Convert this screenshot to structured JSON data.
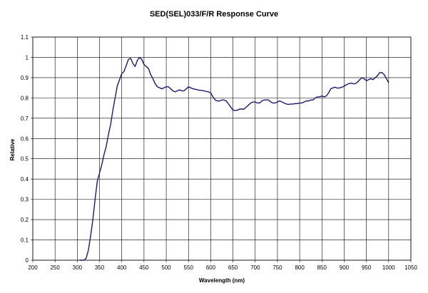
{
  "chart_data": {
    "type": "line",
    "title": "SED(SEL)033/F/R Response Curve",
    "xlabel": "Wavelength (nm)",
    "ylabel": "Relative",
    "xlim": [
      200,
      1050
    ],
    "ylim": [
      0,
      1.1
    ],
    "x_ticks": [
      "200",
      "250",
      "300",
      "350",
      "400",
      "450",
      "500",
      "550",
      "600",
      "650",
      "700",
      "750",
      "800",
      "850",
      "900",
      "950",
      "1000",
      "1050"
    ],
    "y_ticks": [
      "0",
      "0.1",
      "0.2",
      "0.3",
      "0.4",
      "0.5",
      "0.6",
      "0.7",
      "0.8",
      "0.9",
      "1",
      "1.1"
    ],
    "grid": true,
    "legend": "none",
    "series": [
      {
        "color": "#1a1a6e",
        "x": [
          305,
          315,
          320,
          325,
          330,
          335,
          340,
          345,
          350,
          355,
          360,
          365,
          370,
          375,
          380,
          385,
          390,
          395,
          400,
          405,
          410,
          415,
          420,
          425,
          430,
          435,
          440,
          445,
          450,
          455,
          460,
          465,
          470,
          475,
          480,
          485,
          490,
          495,
          500,
          505,
          510,
          515,
          520,
          525,
          530,
          535,
          540,
          545,
          550,
          555,
          560,
          565,
          570,
          575,
          580,
          585,
          590,
          595,
          600,
          605,
          610,
          615,
          620,
          625,
          630,
          635,
          640,
          645,
          650,
          655,
          660,
          665,
          670,
          675,
          680,
          685,
          690,
          695,
          700,
          705,
          710,
          715,
          720,
          725,
          730,
          735,
          740,
          745,
          750,
          755,
          760,
          765,
          770,
          775,
          780,
          785,
          790,
          795,
          800,
          805,
          810,
          815,
          820,
          825,
          830,
          835,
          840,
          845,
          850,
          855,
          860,
          865,
          870,
          875,
          880,
          885,
          890,
          895,
          900,
          905,
          910,
          915,
          920,
          925,
          930,
          935,
          940,
          945,
          950,
          955,
          960,
          965,
          970,
          975,
          980,
          985,
          990,
          995,
          1000
        ],
        "y": [
          0,
          0,
          0.01,
          0.05,
          0.12,
          0.2,
          0.3,
          0.39,
          0.43,
          0.47,
          0.52,
          0.56,
          0.62,
          0.67,
          0.74,
          0.8,
          0.86,
          0.89,
          0.92,
          0.93,
          0.96,
          0.99,
          0.995,
          0.97,
          0.955,
          0.985,
          1.0,
          0.99,
          0.965,
          0.955,
          0.945,
          0.915,
          0.895,
          0.87,
          0.855,
          0.85,
          0.845,
          0.85,
          0.855,
          0.855,
          0.845,
          0.835,
          0.83,
          0.835,
          0.84,
          0.835,
          0.835,
          0.845,
          0.855,
          0.85,
          0.845,
          0.843,
          0.84,
          0.838,
          0.837,
          0.835,
          0.832,
          0.83,
          0.825,
          0.805,
          0.79,
          0.785,
          0.785,
          0.79,
          0.79,
          0.785,
          0.77,
          0.755,
          0.74,
          0.738,
          0.74,
          0.745,
          0.745,
          0.745,
          0.755,
          0.765,
          0.775,
          0.78,
          0.78,
          0.775,
          0.775,
          0.785,
          0.79,
          0.79,
          0.79,
          0.78,
          0.775,
          0.775,
          0.78,
          0.785,
          0.78,
          0.775,
          0.77,
          0.768,
          0.77,
          0.77,
          0.772,
          0.772,
          0.775,
          0.775,
          0.78,
          0.785,
          0.785,
          0.79,
          0.79,
          0.8,
          0.805,
          0.805,
          0.81,
          0.805,
          0.81,
          0.825,
          0.845,
          0.85,
          0.853,
          0.848,
          0.85,
          0.853,
          0.858,
          0.865,
          0.87,
          0.873,
          0.87,
          0.87,
          0.878,
          0.89,
          0.9,
          0.895,
          0.885,
          0.89,
          0.895,
          0.89,
          0.9,
          0.91,
          0.925,
          0.925,
          0.915,
          0.895,
          0.875
        ]
      }
    ]
  }
}
